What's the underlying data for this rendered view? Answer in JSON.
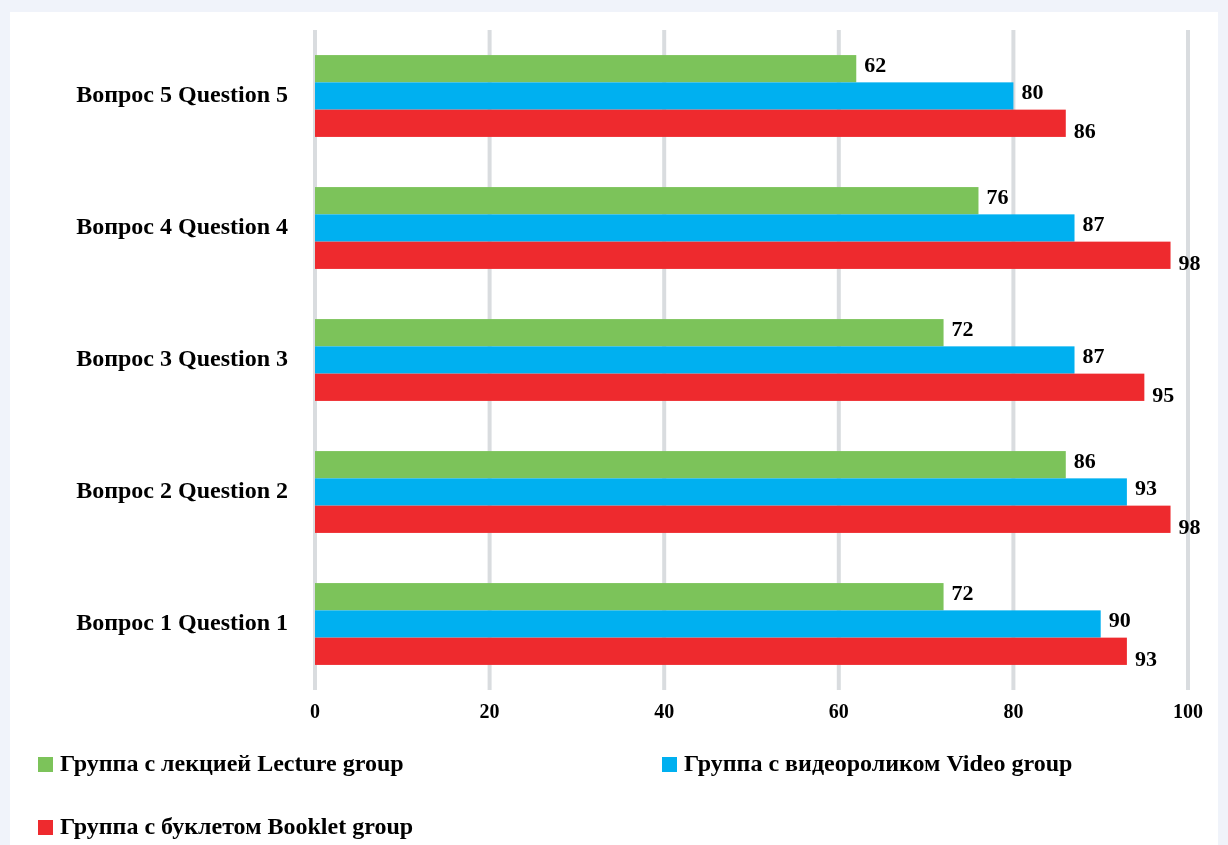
{
  "chart_data": {
    "type": "bar",
    "orientation": "horizontal",
    "categories": [
      "Вопрос 5 Question 5",
      "Вопрос 4 Question 4",
      "Вопрос 3 Question 3",
      "Вопрос 2 Question 2",
      "Вопрос 1 Question 1"
    ],
    "series": [
      {
        "name": "Группа с лекцией Lecture group",
        "color": "#7cc35a",
        "values": [
          62,
          76,
          72,
          86,
          72
        ]
      },
      {
        "name": "Группа с видеороликом Video group",
        "color": "#00b0f0",
        "values": [
          80,
          87,
          87,
          93,
          90
        ]
      },
      {
        "name": "Группа с буклетом Booklet group",
        "color": "#ee2a2e",
        "values": [
          86,
          98,
          95,
          98,
          93
        ]
      }
    ],
    "xlim": [
      0,
      100
    ],
    "xticks": [
      0,
      20,
      40,
      60,
      80,
      100
    ],
    "grid": "x",
    "data_labels": true,
    "legend": "bottom"
  }
}
